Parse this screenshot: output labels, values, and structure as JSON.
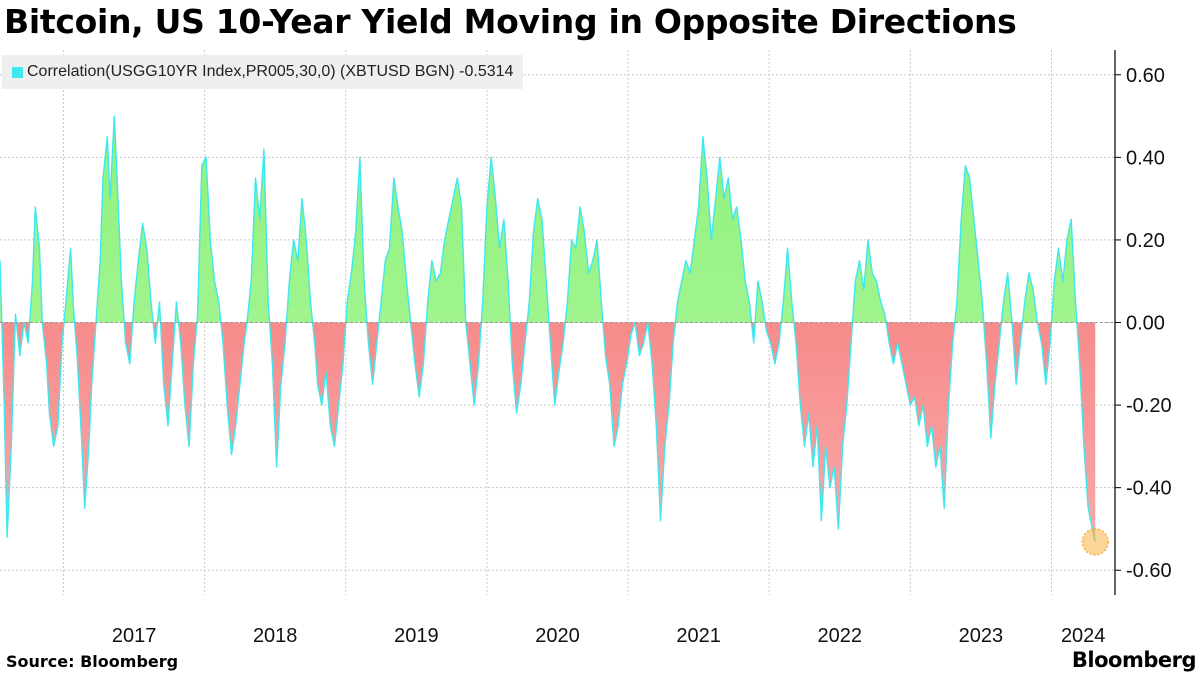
{
  "header": {
    "title": "Bitcoin, US 10-Year Yield Moving in Opposite Directions"
  },
  "legend": {
    "label": "Correlation(USGG10YR Index,PR005,30,0) (XBTUSD BGN) -0.5314",
    "color": "#3ee8ee"
  },
  "footer": {
    "source": "Source: Bloomberg",
    "brand": "Bloomberg"
  },
  "colors": {
    "positive_fill": "#8ff27a",
    "negative_fill": "#f78b8b",
    "line": "#3ee8ee",
    "marker": "#f5b342"
  },
  "chart_data": {
    "type": "area",
    "title": "Bitcoin, US 10-Year Yield Moving in Opposite Directions",
    "series_name": "Correlation(USGG10YR Index,PR005,30,0) (XBTUSD BGN)",
    "last_value": -0.5314,
    "ylim": [
      -0.66,
      0.66
    ],
    "xlim": [
      2016.55,
      2024.45
    ],
    "y_ticks": [
      0.6,
      0.4,
      0.2,
      0.0,
      -0.2,
      -0.4,
      -0.6
    ],
    "y_tick_labels": [
      "0.60",
      "0.40",
      "0.20",
      "0.00",
      "-0.20",
      "-0.40",
      "-0.60"
    ],
    "x_year_boundaries": [
      2017,
      2018,
      2019,
      2020,
      2021,
      2022,
      2023,
      2024
    ],
    "x_tick_labels": [
      "2017",
      "2018",
      "2019",
      "2020",
      "2021",
      "2022",
      "2023",
      "2024"
    ],
    "grid": true,
    "legend_position": "top-left",
    "points": [
      [
        2016.55,
        0.15
      ],
      [
        2016.58,
        -0.2
      ],
      [
        2016.6,
        -0.52
      ],
      [
        2016.63,
        -0.3
      ],
      [
        2016.66,
        0.02
      ],
      [
        2016.69,
        -0.08
      ],
      [
        2016.72,
        0.0
      ],
      [
        2016.75,
        -0.05
      ],
      [
        2016.78,
        0.1
      ],
      [
        2016.8,
        0.28
      ],
      [
        2016.83,
        0.18
      ],
      [
        2016.85,
        0.0
      ],
      [
        2016.88,
        -0.1
      ],
      [
        2016.9,
        -0.22
      ],
      [
        2016.93,
        -0.3
      ],
      [
        2016.96,
        -0.25
      ],
      [
        2016.99,
        -0.05
      ],
      [
        2017.02,
        0.06
      ],
      [
        2017.05,
        0.18
      ],
      [
        2017.07,
        0.04
      ],
      [
        2017.1,
        -0.1
      ],
      [
        2017.13,
        -0.3
      ],
      [
        2017.15,
        -0.45
      ],
      [
        2017.18,
        -0.3
      ],
      [
        2017.2,
        -0.15
      ],
      [
        2017.23,
        0.0
      ],
      [
        2017.26,
        0.15
      ],
      [
        2017.28,
        0.35
      ],
      [
        2017.31,
        0.45
      ],
      [
        2017.33,
        0.3
      ],
      [
        2017.36,
        0.5
      ],
      [
        2017.38,
        0.35
      ],
      [
        2017.41,
        0.1
      ],
      [
        2017.44,
        -0.05
      ],
      [
        2017.47,
        -0.1
      ],
      [
        2017.5,
        0.05
      ],
      [
        2017.53,
        0.15
      ],
      [
        2017.56,
        0.24
      ],
      [
        2017.59,
        0.18
      ],
      [
        2017.62,
        0.05
      ],
      [
        2017.65,
        -0.05
      ],
      [
        2017.68,
        0.05
      ],
      [
        2017.71,
        -0.15
      ],
      [
        2017.74,
        -0.25
      ],
      [
        2017.77,
        -0.1
      ],
      [
        2017.8,
        0.05
      ],
      [
        2017.83,
        -0.05
      ],
      [
        2017.86,
        -0.2
      ],
      [
        2017.89,
        -0.3
      ],
      [
        2017.92,
        -0.1
      ],
      [
        2017.95,
        0.02
      ],
      [
        2017.98,
        0.38
      ],
      [
        2018.01,
        0.4
      ],
      [
        2018.04,
        0.2
      ],
      [
        2018.07,
        0.1
      ],
      [
        2018.1,
        0.05
      ],
      [
        2018.13,
        -0.05
      ],
      [
        2018.16,
        -0.2
      ],
      [
        2018.19,
        -0.32
      ],
      [
        2018.22,
        -0.25
      ],
      [
        2018.25,
        -0.15
      ],
      [
        2018.28,
        -0.05
      ],
      [
        2018.3,
        0.0
      ],
      [
        2018.33,
        0.1
      ],
      [
        2018.36,
        0.35
      ],
      [
        2018.39,
        0.25
      ],
      [
        2018.42,
        0.42
      ],
      [
        2018.45,
        0.05
      ],
      [
        2018.48,
        -0.1
      ],
      [
        2018.51,
        -0.35
      ],
      [
        2018.54,
        -0.15
      ],
      [
        2018.57,
        -0.05
      ],
      [
        2018.6,
        0.1
      ],
      [
        2018.63,
        0.2
      ],
      [
        2018.66,
        0.15
      ],
      [
        2018.69,
        0.3
      ],
      [
        2018.72,
        0.2
      ],
      [
        2018.75,
        0.05
      ],
      [
        2018.78,
        -0.05
      ],
      [
        2018.8,
        -0.15
      ],
      [
        2018.83,
        -0.2
      ],
      [
        2018.86,
        -0.12
      ],
      [
        2018.89,
        -0.25
      ],
      [
        2018.92,
        -0.3
      ],
      [
        2018.95,
        -0.2
      ],
      [
        2018.98,
        -0.1
      ],
      [
        2019.01,
        0.05
      ],
      [
        2019.04,
        0.12
      ],
      [
        2019.07,
        0.22
      ],
      [
        2019.1,
        0.4
      ],
      [
        2019.13,
        0.1
      ],
      [
        2019.16,
        -0.05
      ],
      [
        2019.19,
        -0.15
      ],
      [
        2019.22,
        -0.05
      ],
      [
        2019.25,
        0.05
      ],
      [
        2019.28,
        0.15
      ],
      [
        2019.31,
        0.18
      ],
      [
        2019.34,
        0.35
      ],
      [
        2019.37,
        0.28
      ],
      [
        2019.4,
        0.22
      ],
      [
        2019.43,
        0.1
      ],
      [
        2019.46,
        0.0
      ],
      [
        2019.49,
        -0.1
      ],
      [
        2019.52,
        -0.18
      ],
      [
        2019.55,
        -0.1
      ],
      [
        2019.58,
        0.05
      ],
      [
        2019.61,
        0.15
      ],
      [
        2019.64,
        0.1
      ],
      [
        2019.67,
        0.12
      ],
      [
        2019.7,
        0.2
      ],
      [
        2019.73,
        0.25
      ],
      [
        2019.76,
        0.3
      ],
      [
        2019.79,
        0.35
      ],
      [
        2019.82,
        0.28
      ],
      [
        2019.85,
        0.0
      ],
      [
        2019.88,
        -0.1
      ],
      [
        2019.91,
        -0.2
      ],
      [
        2019.94,
        -0.1
      ],
      [
        2019.97,
        0.05
      ],
      [
        2020.0,
        0.28
      ],
      [
        2020.03,
        0.4
      ],
      [
        2020.06,
        0.3
      ],
      [
        2020.09,
        0.18
      ],
      [
        2020.12,
        0.25
      ],
      [
        2020.15,
        0.1
      ],
      [
        2020.18,
        -0.1
      ],
      [
        2020.21,
        -0.22
      ],
      [
        2020.24,
        -0.15
      ],
      [
        2020.27,
        -0.05
      ],
      [
        2020.3,
        0.05
      ],
      [
        2020.33,
        0.22
      ],
      [
        2020.36,
        0.3
      ],
      [
        2020.39,
        0.25
      ],
      [
        2020.42,
        0.1
      ],
      [
        2020.45,
        -0.05
      ],
      [
        2020.48,
        -0.2
      ],
      [
        2020.51,
        -0.12
      ],
      [
        2020.54,
        -0.05
      ],
      [
        2020.57,
        0.05
      ],
      [
        2020.6,
        0.2
      ],
      [
        2020.63,
        0.18
      ],
      [
        2020.66,
        0.28
      ],
      [
        2020.69,
        0.22
      ],
      [
        2020.72,
        0.12
      ],
      [
        2020.75,
        0.15
      ],
      [
        2020.78,
        0.2
      ],
      [
        2020.81,
        0.05
      ],
      [
        2020.84,
        -0.08
      ],
      [
        2020.87,
        -0.15
      ],
      [
        2020.9,
        -0.3
      ],
      [
        2020.93,
        -0.25
      ],
      [
        2020.96,
        -0.15
      ],
      [
        2020.99,
        -0.1
      ],
      [
        2021.02,
        -0.03
      ],
      [
        2021.05,
        0.0
      ],
      [
        2021.08,
        -0.08
      ],
      [
        2021.11,
        -0.05
      ],
      [
        2021.14,
        0.0
      ],
      [
        2021.17,
        -0.1
      ],
      [
        2021.2,
        -0.25
      ],
      [
        2021.23,
        -0.48
      ],
      [
        2021.26,
        -0.3
      ],
      [
        2021.29,
        -0.2
      ],
      [
        2021.32,
        -0.05
      ],
      [
        2021.35,
        0.05
      ],
      [
        2021.38,
        0.1
      ],
      [
        2021.41,
        0.15
      ],
      [
        2021.44,
        0.12
      ],
      [
        2021.47,
        0.2
      ],
      [
        2021.5,
        0.28
      ],
      [
        2021.53,
        0.45
      ],
      [
        2021.56,
        0.35
      ],
      [
        2021.59,
        0.2
      ],
      [
        2021.62,
        0.3
      ],
      [
        2021.65,
        0.4
      ],
      [
        2021.68,
        0.3
      ],
      [
        2021.71,
        0.35
      ],
      [
        2021.74,
        0.25
      ],
      [
        2021.77,
        0.28
      ],
      [
        2021.8,
        0.2
      ],
      [
        2021.83,
        0.1
      ],
      [
        2021.86,
        0.05
      ],
      [
        2021.89,
        -0.05
      ],
      [
        2021.92,
        0.1
      ],
      [
        2021.95,
        0.05
      ],
      [
        2021.98,
        -0.02
      ],
      [
        2022.01,
        -0.05
      ],
      [
        2022.04,
        -0.1
      ],
      [
        2022.07,
        -0.05
      ],
      [
        2022.1,
        0.05
      ],
      [
        2022.13,
        0.18
      ],
      [
        2022.16,
        0.05
      ],
      [
        2022.19,
        -0.05
      ],
      [
        2022.22,
        -0.2
      ],
      [
        2022.25,
        -0.3
      ],
      [
        2022.28,
        -0.22
      ],
      [
        2022.31,
        -0.35
      ],
      [
        2022.34,
        -0.25
      ],
      [
        2022.37,
        -0.48
      ],
      [
        2022.4,
        -0.3
      ],
      [
        2022.43,
        -0.4
      ],
      [
        2022.46,
        -0.35
      ],
      [
        2022.49,
        -0.5
      ],
      [
        2022.52,
        -0.3
      ],
      [
        2022.55,
        -0.2
      ],
      [
        2022.58,
        -0.05
      ],
      [
        2022.61,
        0.1
      ],
      [
        2022.64,
        0.15
      ],
      [
        2022.67,
        0.08
      ],
      [
        2022.7,
        0.2
      ],
      [
        2022.73,
        0.12
      ],
      [
        2022.76,
        0.1
      ],
      [
        2022.79,
        0.05
      ],
      [
        2022.82,
        0.02
      ],
      [
        2022.85,
        -0.05
      ],
      [
        2022.88,
        -0.1
      ],
      [
        2022.91,
        -0.05
      ],
      [
        2022.94,
        -0.1
      ],
      [
        2022.97,
        -0.15
      ],
      [
        2023.0,
        -0.2
      ],
      [
        2023.03,
        -0.18
      ],
      [
        2023.06,
        -0.25
      ],
      [
        2023.09,
        -0.2
      ],
      [
        2023.12,
        -0.3
      ],
      [
        2023.15,
        -0.25
      ],
      [
        2023.18,
        -0.35
      ],
      [
        2023.21,
        -0.3
      ],
      [
        2023.24,
        -0.45
      ],
      [
        2023.27,
        -0.2
      ],
      [
        2023.3,
        -0.05
      ],
      [
        2023.33,
        0.05
      ],
      [
        2023.36,
        0.25
      ],
      [
        2023.39,
        0.38
      ],
      [
        2023.42,
        0.35
      ],
      [
        2023.45,
        0.25
      ],
      [
        2023.48,
        0.15
      ],
      [
        2023.51,
        0.05
      ],
      [
        2023.54,
        -0.1
      ],
      [
        2023.57,
        -0.28
      ],
      [
        2023.6,
        -0.15
      ],
      [
        2023.63,
        -0.05
      ],
      [
        2023.66,
        0.05
      ],
      [
        2023.69,
        0.12
      ],
      [
        2023.72,
        0.0
      ],
      [
        2023.75,
        -0.15
      ],
      [
        2023.78,
        -0.05
      ],
      [
        2023.81,
        0.05
      ],
      [
        2023.84,
        0.12
      ],
      [
        2023.87,
        0.08
      ],
      [
        2023.9,
        0.0
      ],
      [
        2023.93,
        -0.05
      ],
      [
        2023.96,
        -0.15
      ],
      [
        2023.99,
        -0.05
      ],
      [
        2024.02,
        0.1
      ],
      [
        2024.05,
        0.18
      ],
      [
        2024.08,
        0.1
      ],
      [
        2024.11,
        0.2
      ],
      [
        2024.14,
        0.25
      ],
      [
        2024.17,
        0.05
      ],
      [
        2024.2,
        -0.1
      ],
      [
        2024.23,
        -0.3
      ],
      [
        2024.26,
        -0.45
      ],
      [
        2024.29,
        -0.5
      ],
      [
        2024.31,
        -0.5314
      ]
    ]
  }
}
